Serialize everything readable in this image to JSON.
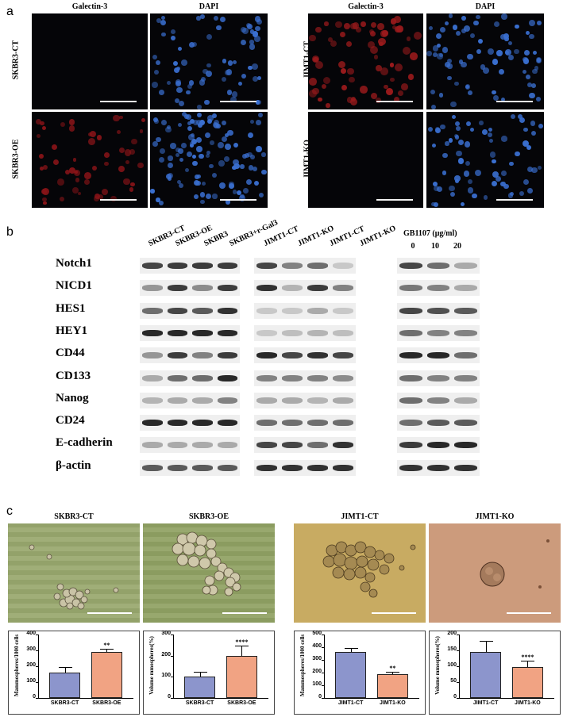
{
  "panel_a": {
    "letter": "a",
    "left_col_titles": [
      "Galectin-3",
      "DAPI"
    ],
    "right_col_titles": [
      "Galectin-3",
      "DAPI"
    ],
    "left_rows": [
      "SKBR3-CT",
      "SKBR3-OE"
    ],
    "right_rows": [
      "JIMT1-CT",
      "JIMT1-KO"
    ]
  },
  "panel_b": {
    "letter": "b",
    "lanes_group1": [
      "SKBR3-CT",
      "SKBR3-OE",
      "SKBR3",
      "SKBR3+r-Gal3"
    ],
    "lanes_group2": [
      "JIMT1-CT",
      "JIMT1-KO",
      "JIMT1-CT",
      "JIMT1-KO"
    ],
    "group3_title": "GB1107 (μg/ml)",
    "group3_doses": [
      "0",
      "10",
      "20"
    ],
    "proteins": [
      "Notch1",
      "NICD1",
      "HES1",
      "HEY1",
      "CD44",
      "CD133",
      "Nanog",
      "CD24",
      "E-cadherin",
      "β-actin"
    ]
  },
  "panel_c": {
    "letter": "c",
    "photo_titles": [
      "SKBR3-CT",
      "SKBR3-OE",
      "JIMT1-CT",
      "JIMT1-KO"
    ]
  },
  "chart_data": [
    {
      "type": "bar",
      "categories": [
        "SKBR3-CT",
        "SKBR3-OE"
      ],
      "values": [
        160,
        290
      ],
      "errors": [
        35,
        20
      ],
      "ylabel": "Mammospheres/1000 cells",
      "ylim": [
        0,
        400
      ],
      "yticks": [
        "0",
        "100",
        "200",
        "300",
        "400"
      ],
      "significance": "**",
      "colors": [
        "#8c95cc",
        "#f1a383"
      ]
    },
    {
      "type": "bar",
      "categories": [
        "SKBR3-CT",
        "SKBR3-OE"
      ],
      "values": [
        100,
        198
      ],
      "errors": [
        22,
        50
      ],
      "ylabel": "Volume mmospheres(%)",
      "ylim": [
        0,
        300
      ],
      "yticks": [
        "0",
        "100",
        "200",
        "300"
      ],
      "significance": "****",
      "colors": [
        "#8c95cc",
        "#f1a383"
      ]
    },
    {
      "type": "bar",
      "categories": [
        "JIMT1-CT",
        "JIMT1-KO"
      ],
      "values": [
        360,
        190
      ],
      "errors": [
        35,
        15
      ],
      "ylabel": "Mammospheres/1000 cells",
      "ylim": [
        0,
        500
      ],
      "yticks": [
        "0",
        "100",
        "200",
        "300",
        "400",
        "500"
      ],
      "significance": "**",
      "colors": [
        "#8c95cc",
        "#f1a383"
      ]
    },
    {
      "type": "bar",
      "categories": [
        "JIMT1-CT",
        "JIMT1-KO"
      ],
      "values": [
        145,
        98
      ],
      "errors": [
        35,
        20
      ],
      "ylabel": "Volume mmospheres(%)",
      "ylim": [
        0,
        200
      ],
      "yticks": [
        "0",
        "50",
        "100",
        "150",
        "200"
      ],
      "significance": "****",
      "colors": [
        "#8c95cc",
        "#f1a383"
      ]
    }
  ]
}
